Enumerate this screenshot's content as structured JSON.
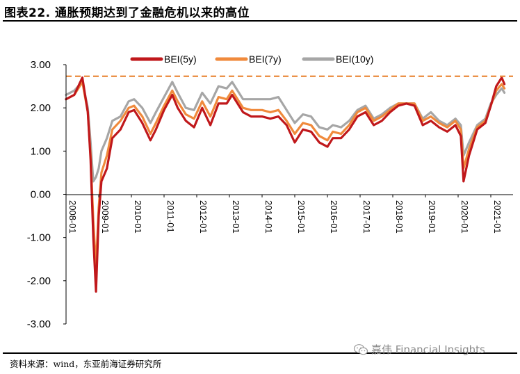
{
  "figure_title": "图表22. 通胀预期达到了金融危机以来的高位",
  "source_note": "资料来源：wind，东亚前海证券研究所",
  "watermark_text": "嘉伟 Financial Insights",
  "watermark_icon": "wechat-icon",
  "colors": {
    "bei5": "#c0181b",
    "bei7": "#f08a3c",
    "bei10": "#a6a6a6",
    "ref_line": "#e98a3c",
    "axis": "#000000"
  },
  "chart_data": {
    "type": "line",
    "title": "",
    "xlabel": "",
    "ylabel": "",
    "ylim": [
      -3.0,
      3.0
    ],
    "y_ticks": [
      "3.00",
      "2.00",
      "1.00",
      "0.00",
      "-1.00",
      "-2.00",
      "-3.00"
    ],
    "x_range": [
      "2008-01",
      "2021-06"
    ],
    "x_ticks": [
      "2008-01",
      "2009-01",
      "2010-01",
      "2011-01",
      "2012-01",
      "2013-01",
      "2014-01",
      "2015-01",
      "2016-01",
      "2017-01",
      "2018-01",
      "2019-01",
      "2020-01",
      "2021-01"
    ],
    "legend_position": "top",
    "grid": false,
    "reference_line": {
      "y": 2.73,
      "style": "dashed"
    },
    "series": [
      {
        "name": "BEI(5y)",
        "points": [
          [
            "2008-01",
            2.2
          ],
          [
            "2008-04",
            2.3
          ],
          [
            "2008-07",
            2.7
          ],
          [
            "2008-09",
            1.9
          ],
          [
            "2008-10",
            0.8
          ],
          [
            "2008-11",
            -1.0
          ],
          [
            "2008-12",
            -2.25
          ],
          [
            "2009-01",
            -0.5
          ],
          [
            "2009-02",
            0.3
          ],
          [
            "2009-04",
            0.6
          ],
          [
            "2009-06",
            1.3
          ],
          [
            "2009-09",
            1.5
          ],
          [
            "2009-12",
            1.9
          ],
          [
            "2010-02",
            1.95
          ],
          [
            "2010-05",
            1.65
          ],
          [
            "2010-08",
            1.25
          ],
          [
            "2010-10",
            1.5
          ],
          [
            "2011-01",
            1.95
          ],
          [
            "2011-04",
            2.3
          ],
          [
            "2011-06",
            2.0
          ],
          [
            "2011-09",
            1.7
          ],
          [
            "2011-12",
            1.55
          ],
          [
            "2012-03",
            2.0
          ],
          [
            "2012-06",
            1.6
          ],
          [
            "2012-09",
            2.1
          ],
          [
            "2012-12",
            2.1
          ],
          [
            "2013-02",
            2.3
          ],
          [
            "2013-06",
            1.9
          ],
          [
            "2013-09",
            1.8
          ],
          [
            "2014-01",
            1.8
          ],
          [
            "2014-04",
            1.75
          ],
          [
            "2014-07",
            1.8
          ],
          [
            "2014-10",
            1.6
          ],
          [
            "2015-01",
            1.2
          ],
          [
            "2015-04",
            1.5
          ],
          [
            "2015-07",
            1.45
          ],
          [
            "2015-10",
            1.2
          ],
          [
            "2016-01",
            1.1
          ],
          [
            "2016-03",
            1.3
          ],
          [
            "2016-06",
            1.3
          ],
          [
            "2016-09",
            1.5
          ],
          [
            "2016-12",
            1.8
          ],
          [
            "2017-03",
            1.9
          ],
          [
            "2017-06",
            1.6
          ],
          [
            "2017-09",
            1.7
          ],
          [
            "2017-12",
            1.9
          ],
          [
            "2018-03",
            2.05
          ],
          [
            "2018-06",
            2.1
          ],
          [
            "2018-09",
            2.05
          ],
          [
            "2018-12",
            1.6
          ],
          [
            "2019-03",
            1.7
          ],
          [
            "2019-06",
            1.55
          ],
          [
            "2019-09",
            1.45
          ],
          [
            "2019-12",
            1.6
          ],
          [
            "2020-02",
            1.35
          ],
          [
            "2020-03",
            0.3
          ],
          [
            "2020-05",
            0.9
          ],
          [
            "2020-08",
            1.5
          ],
          [
            "2020-11",
            1.65
          ],
          [
            "2021-01",
            2.05
          ],
          [
            "2021-03",
            2.5
          ],
          [
            "2021-05",
            2.7
          ],
          [
            "2021-06",
            2.55
          ]
        ]
      },
      {
        "name": "BEI(7y)",
        "points": [
          [
            "2008-01",
            2.2
          ],
          [
            "2008-04",
            2.3
          ],
          [
            "2008-07",
            2.6
          ],
          [
            "2008-09",
            1.9
          ],
          [
            "2008-10",
            0.9
          ],
          [
            "2008-11",
            -0.6
          ],
          [
            "2008-12",
            -1.7
          ],
          [
            "2009-01",
            -0.3
          ],
          [
            "2009-02",
            0.5
          ],
          [
            "2009-04",
            0.9
          ],
          [
            "2009-06",
            1.5
          ],
          [
            "2009-09",
            1.7
          ],
          [
            "2009-12",
            2.0
          ],
          [
            "2010-02",
            2.05
          ],
          [
            "2010-05",
            1.8
          ],
          [
            "2010-08",
            1.4
          ],
          [
            "2010-10",
            1.65
          ],
          [
            "2011-01",
            2.05
          ],
          [
            "2011-04",
            2.4
          ],
          [
            "2011-06",
            2.15
          ],
          [
            "2011-09",
            1.85
          ],
          [
            "2011-12",
            1.75
          ],
          [
            "2012-03",
            2.15
          ],
          [
            "2012-06",
            1.8
          ],
          [
            "2012-09",
            2.25
          ],
          [
            "2012-12",
            2.2
          ],
          [
            "2013-02",
            2.4
          ],
          [
            "2013-06",
            2.0
          ],
          [
            "2013-09",
            1.95
          ],
          [
            "2014-01",
            1.95
          ],
          [
            "2014-04",
            1.9
          ],
          [
            "2014-07",
            1.95
          ],
          [
            "2014-10",
            1.7
          ],
          [
            "2015-01",
            1.4
          ],
          [
            "2015-04",
            1.65
          ],
          [
            "2015-07",
            1.6
          ],
          [
            "2015-10",
            1.35
          ],
          [
            "2016-01",
            1.25
          ],
          [
            "2016-03",
            1.45
          ],
          [
            "2016-06",
            1.4
          ],
          [
            "2016-09",
            1.6
          ],
          [
            "2016-12",
            1.9
          ],
          [
            "2017-03",
            2.0
          ],
          [
            "2017-06",
            1.7
          ],
          [
            "2017-09",
            1.8
          ],
          [
            "2017-12",
            1.95
          ],
          [
            "2018-03",
            2.1
          ],
          [
            "2018-06",
            2.1
          ],
          [
            "2018-09",
            2.1
          ],
          [
            "2018-12",
            1.7
          ],
          [
            "2019-03",
            1.8
          ],
          [
            "2019-06",
            1.65
          ],
          [
            "2019-09",
            1.55
          ],
          [
            "2019-12",
            1.7
          ],
          [
            "2020-02",
            1.5
          ],
          [
            "2020-03",
            0.6
          ],
          [
            "2020-05",
            1.05
          ],
          [
            "2020-08",
            1.55
          ],
          [
            "2020-11",
            1.7
          ],
          [
            "2021-01",
            2.05
          ],
          [
            "2021-03",
            2.4
          ],
          [
            "2021-05",
            2.55
          ],
          [
            "2021-06",
            2.45
          ]
        ]
      },
      {
        "name": "BEI(10y)",
        "points": [
          [
            "2008-01",
            2.3
          ],
          [
            "2008-04",
            2.4
          ],
          [
            "2008-07",
            2.6
          ],
          [
            "2008-09",
            2.0
          ],
          [
            "2008-10",
            1.2
          ],
          [
            "2008-11",
            0.3
          ],
          [
            "2008-12",
            0.4
          ],
          [
            "2009-01",
            0.6
          ],
          [
            "2009-02",
            1.0
          ],
          [
            "2009-04",
            1.3
          ],
          [
            "2009-06",
            1.7
          ],
          [
            "2009-09",
            1.8
          ],
          [
            "2009-12",
            2.15
          ],
          [
            "2010-02",
            2.2
          ],
          [
            "2010-05",
            2.0
          ],
          [
            "2010-08",
            1.65
          ],
          [
            "2010-10",
            1.9
          ],
          [
            "2011-01",
            2.25
          ],
          [
            "2011-04",
            2.6
          ],
          [
            "2011-06",
            2.35
          ],
          [
            "2011-09",
            2.0
          ],
          [
            "2011-12",
            1.95
          ],
          [
            "2012-03",
            2.35
          ],
          [
            "2012-06",
            2.1
          ],
          [
            "2012-09",
            2.5
          ],
          [
            "2012-12",
            2.45
          ],
          [
            "2013-02",
            2.6
          ],
          [
            "2013-06",
            2.2
          ],
          [
            "2013-09",
            2.2
          ],
          [
            "2014-01",
            2.2
          ],
          [
            "2014-04",
            2.2
          ],
          [
            "2014-07",
            2.25
          ],
          [
            "2014-10",
            1.95
          ],
          [
            "2015-01",
            1.65
          ],
          [
            "2015-04",
            1.85
          ],
          [
            "2015-07",
            1.8
          ],
          [
            "2015-10",
            1.55
          ],
          [
            "2016-01",
            1.5
          ],
          [
            "2016-03",
            1.6
          ],
          [
            "2016-06",
            1.55
          ],
          [
            "2016-09",
            1.7
          ],
          [
            "2016-12",
            1.95
          ],
          [
            "2017-03",
            2.05
          ],
          [
            "2017-06",
            1.75
          ],
          [
            "2017-09",
            1.85
          ],
          [
            "2017-12",
            2.0
          ],
          [
            "2018-03",
            2.1
          ],
          [
            "2018-06",
            2.1
          ],
          [
            "2018-09",
            2.1
          ],
          [
            "2018-12",
            1.75
          ],
          [
            "2019-03",
            1.9
          ],
          [
            "2019-06",
            1.7
          ],
          [
            "2019-09",
            1.6
          ],
          [
            "2019-12",
            1.75
          ],
          [
            "2020-02",
            1.6
          ],
          [
            "2020-03",
            0.9
          ],
          [
            "2020-05",
            1.2
          ],
          [
            "2020-08",
            1.6
          ],
          [
            "2020-11",
            1.75
          ],
          [
            "2021-01",
            2.1
          ],
          [
            "2021-03",
            2.3
          ],
          [
            "2021-05",
            2.45
          ],
          [
            "2021-06",
            2.35
          ]
        ]
      }
    ]
  }
}
